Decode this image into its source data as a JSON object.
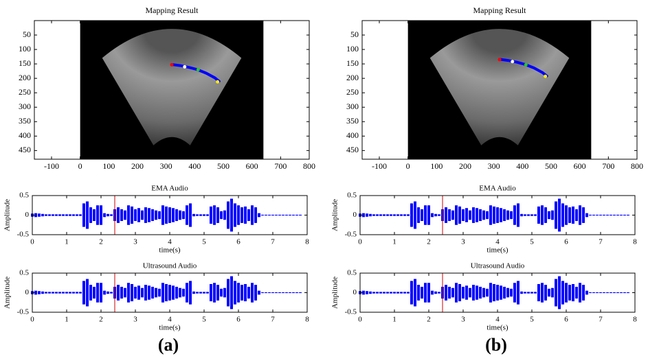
{
  "chart_data": [
    {
      "type": "image",
      "title": "Mapping Result",
      "xlim": [
        -160,
        800
      ],
      "ylim": [
        480,
        0
      ],
      "xticks": [
        -100,
        0,
        100,
        200,
        300,
        400,
        500,
        600,
        700,
        800
      ],
      "yticks": [
        50,
        100,
        150,
        200,
        250,
        300,
        350,
        400,
        450
      ],
      "image_xlim": [
        0,
        640
      ],
      "image_ylim": [
        0,
        480
      ],
      "curve": {
        "color": "#0000ff",
        "x": [
          320,
          350,
          380,
          410,
          440,
          470,
          485
        ],
        "y": [
          152,
          156,
          162,
          170,
          182,
          198,
          210
        ]
      },
      "points": [
        {
          "color": "#ff0000",
          "x": 320,
          "y": 153
        },
        {
          "color": "#ffffff",
          "x": 365,
          "y": 160
        },
        {
          "color": "#22cc22",
          "x": 412,
          "y": 170
        },
        {
          "color": "#ffee00",
          "x": 480,
          "y": 212
        }
      ]
    },
    {
      "type": "waveform",
      "title": "EMA Audio",
      "xlabel": "time(s)",
      "ylabel": "Amplitude",
      "xlim": [
        0,
        8
      ],
      "ylim": [
        -0.5,
        0.5
      ],
      "xticks": [
        0,
        1,
        2,
        3,
        4,
        5,
        6,
        7,
        8
      ],
      "yticks": [
        -0.5,
        0,
        0.5
      ],
      "color": "#0000ff",
      "marker_x": 2.4,
      "marker_color": "#cc0000",
      "x": [
        0,
        0.1,
        0.2,
        0.3,
        0.4,
        0.5,
        0.6,
        0.7,
        0.8,
        0.9,
        1,
        1.1,
        1.2,
        1.3,
        1.4,
        1.5,
        1.6,
        1.7,
        1.8,
        1.9,
        2,
        2.1,
        2.2,
        2.3,
        2.4,
        2.5,
        2.6,
        2.7,
        2.8,
        2.9,
        3,
        3.1,
        3.2,
        3.3,
        3.4,
        3.5,
        3.6,
        3.7,
        3.8,
        3.9,
        4,
        4.1,
        4.2,
        4.3,
        4.4,
        4.5,
        4.6,
        4.7,
        4.8,
        4.9,
        5,
        5.1,
        5.2,
        5.3,
        5.4,
        5.5,
        5.6,
        5.7,
        5.8,
        5.9,
        6,
        6.1,
        6.2,
        6.3,
        6.4,
        6.5,
        6.6,
        6.7,
        6.8,
        6.9,
        7,
        7.1,
        7.2,
        7.3,
        7.4,
        7.5,
        7.6,
        7.7,
        7.8
      ],
      "values": [
        0.04,
        0.05,
        0.04,
        0.03,
        0.02,
        0.02,
        0.02,
        0.02,
        0.02,
        0.02,
        0.02,
        0.02,
        0.02,
        0.02,
        0.02,
        0.3,
        0.35,
        0.2,
        0.15,
        0.25,
        0.25,
        0.05,
        0.03,
        0.02,
        0.15,
        0.2,
        0.15,
        0.12,
        0.25,
        0.22,
        0.15,
        0.18,
        0.12,
        0.2,
        0.18,
        0.15,
        0.12,
        0.1,
        0.25,
        0.22,
        0.2,
        0.18,
        0.15,
        0.12,
        0.1,
        0.25,
        0.3,
        0.03,
        0.02,
        0.02,
        0.02,
        0.02,
        0.22,
        0.25,
        0.2,
        0.1,
        0.12,
        0.35,
        0.42,
        0.3,
        0.25,
        0.2,
        0.22,
        0.15,
        0.25,
        0.2,
        0.05,
        0.01,
        0.01,
        0.01,
        0.01,
        0.01,
        0.01,
        0.01,
        0.01,
        0.01,
        0.01,
        0.01,
        0.01
      ]
    },
    {
      "type": "waveform",
      "title": "Ultrasound Audio",
      "xlabel": "time(s)",
      "ylabel": "Amplitude",
      "xlim": [
        0,
        8
      ],
      "ylim": [
        -0.5,
        0.5
      ],
      "xticks": [
        0,
        1,
        2,
        3,
        4,
        5,
        6,
        7,
        8
      ],
      "yticks": [
        -0.5,
        0,
        0.5
      ],
      "color": "#0000ff",
      "marker_x": 2.4,
      "marker_color": "#cc0000",
      "x": [
        0,
        0.1,
        0.2,
        0.3,
        0.4,
        0.5,
        0.6,
        0.7,
        0.8,
        0.9,
        1,
        1.1,
        1.2,
        1.3,
        1.4,
        1.5,
        1.6,
        1.7,
        1.8,
        1.9,
        2,
        2.1,
        2.2,
        2.3,
        2.4,
        2.5,
        2.6,
        2.7,
        2.8,
        2.9,
        3,
        3.1,
        3.2,
        3.3,
        3.4,
        3.5,
        3.6,
        3.7,
        3.8,
        3.9,
        4,
        4.1,
        4.2,
        4.3,
        4.4,
        4.5,
        4.6,
        4.7,
        4.8,
        4.9,
        5,
        5.1,
        5.2,
        5.3,
        5.4,
        5.5,
        5.6,
        5.7,
        5.8,
        5.9,
        6,
        6.1,
        6.2,
        6.3,
        6.4,
        6.5,
        6.6,
        6.7,
        6.8,
        6.9,
        7,
        7.1,
        7.2,
        7.3,
        7.4,
        7.5,
        7.6,
        7.7,
        7.8
      ],
      "values": [
        0.04,
        0.05,
        0.04,
        0.03,
        0.02,
        0.02,
        0.02,
        0.02,
        0.02,
        0.02,
        0.02,
        0.02,
        0.02,
        0.02,
        0.02,
        0.3,
        0.35,
        0.2,
        0.15,
        0.25,
        0.25,
        0.05,
        0.03,
        0.02,
        0.15,
        0.2,
        0.15,
        0.12,
        0.25,
        0.22,
        0.15,
        0.18,
        0.12,
        0.2,
        0.18,
        0.15,
        0.12,
        0.1,
        0.25,
        0.22,
        0.2,
        0.18,
        0.15,
        0.12,
        0.1,
        0.25,
        0.3,
        0.03,
        0.02,
        0.02,
        0.02,
        0.02,
        0.22,
        0.25,
        0.2,
        0.1,
        0.12,
        0.35,
        0.42,
        0.3,
        0.25,
        0.2,
        0.22,
        0.15,
        0.25,
        0.2,
        0.05,
        0.01,
        0.01,
        0.01,
        0.01,
        0.01,
        0.01,
        0.01,
        0.01,
        0.01,
        0.01,
        0.01,
        0.01
      ]
    },
    {
      "type": "image",
      "title": "Mapping Result",
      "xlim": [
        -160,
        800
      ],
      "ylim": [
        480,
        0
      ],
      "xticks": [
        -100,
        0,
        100,
        200,
        300,
        400,
        500,
        600,
        700,
        800
      ],
      "yticks": [
        50,
        100,
        150,
        200,
        250,
        300,
        350,
        400,
        450
      ],
      "image_xlim": [
        0,
        640
      ],
      "image_ylim": [
        0,
        480
      ],
      "curve": {
        "color": "#0000ff",
        "x": [
          320,
          350,
          380,
          410,
          440,
          470,
          485
        ],
        "y": [
          134,
          138,
          144,
          152,
          164,
          180,
          192
        ]
      },
      "points": [
        {
          "color": "#ff0000",
          "x": 320,
          "y": 135
        },
        {
          "color": "#ffffff",
          "x": 365,
          "y": 142
        },
        {
          "color": "#22cc22",
          "x": 412,
          "y": 153
        },
        {
          "color": "#ffee00",
          "x": 480,
          "y": 193
        }
      ]
    },
    {
      "type": "waveform",
      "title": "EMA Audio",
      "xlabel": "time(s)",
      "ylabel": "Amplitude",
      "xlim": [
        0,
        8
      ],
      "ylim": [
        -0.5,
        0.5
      ],
      "xticks": [
        0,
        1,
        2,
        3,
        4,
        5,
        6,
        7,
        8
      ],
      "yticks": [
        -0.5,
        0,
        0.5
      ],
      "color": "#0000ff",
      "marker_x": 2.4,
      "marker_color": "#cc0000",
      "x": [
        0,
        0.1,
        0.2,
        0.3,
        0.4,
        0.5,
        0.6,
        0.7,
        0.8,
        0.9,
        1,
        1.1,
        1.2,
        1.3,
        1.4,
        1.5,
        1.6,
        1.7,
        1.8,
        1.9,
        2,
        2.1,
        2.2,
        2.3,
        2.4,
        2.5,
        2.6,
        2.7,
        2.8,
        2.9,
        3,
        3.1,
        3.2,
        3.3,
        3.4,
        3.5,
        3.6,
        3.7,
        3.8,
        3.9,
        4,
        4.1,
        4.2,
        4.3,
        4.4,
        4.5,
        4.6,
        4.7,
        4.8,
        4.9,
        5,
        5.1,
        5.2,
        5.3,
        5.4,
        5.5,
        5.6,
        5.7,
        5.8,
        5.9,
        6,
        6.1,
        6.2,
        6.3,
        6.4,
        6.5,
        6.6,
        6.7,
        6.8,
        6.9,
        7,
        7.1,
        7.2,
        7.3,
        7.4,
        7.5,
        7.6,
        7.7,
        7.8
      ],
      "values": [
        0.04,
        0.05,
        0.04,
        0.03,
        0.02,
        0.02,
        0.02,
        0.02,
        0.02,
        0.02,
        0.02,
        0.02,
        0.02,
        0.02,
        0.02,
        0.3,
        0.35,
        0.2,
        0.15,
        0.25,
        0.25,
        0.05,
        0.03,
        0.02,
        0.15,
        0.2,
        0.15,
        0.12,
        0.25,
        0.22,
        0.15,
        0.18,
        0.12,
        0.2,
        0.18,
        0.15,
        0.12,
        0.1,
        0.25,
        0.22,
        0.2,
        0.18,
        0.15,
        0.12,
        0.1,
        0.25,
        0.3,
        0.03,
        0.02,
        0.02,
        0.02,
        0.02,
        0.22,
        0.25,
        0.2,
        0.1,
        0.12,
        0.35,
        0.42,
        0.3,
        0.25,
        0.2,
        0.22,
        0.15,
        0.25,
        0.2,
        0.05,
        0.01,
        0.01,
        0.01,
        0.01,
        0.01,
        0.01,
        0.01,
        0.01,
        0.01,
        0.01,
        0.01,
        0.01
      ]
    },
    {
      "type": "waveform",
      "title": "Ultrasound Audio",
      "xlabel": "time(s)",
      "ylabel": "Amplitude",
      "xlim": [
        0,
        8
      ],
      "ylim": [
        -0.5,
        0.5
      ],
      "xticks": [
        0,
        1,
        2,
        3,
        4,
        5,
        6,
        7,
        8
      ],
      "yticks": [
        -0.5,
        0,
        0.5
      ],
      "color": "#0000ff",
      "marker_x": 2.4,
      "marker_color": "#cc0000",
      "x": [
        0,
        0.1,
        0.2,
        0.3,
        0.4,
        0.5,
        0.6,
        0.7,
        0.8,
        0.9,
        1,
        1.1,
        1.2,
        1.3,
        1.4,
        1.5,
        1.6,
        1.7,
        1.8,
        1.9,
        2,
        2.1,
        2.2,
        2.3,
        2.4,
        2.5,
        2.6,
        2.7,
        2.8,
        2.9,
        3,
        3.1,
        3.2,
        3.3,
        3.4,
        3.5,
        3.6,
        3.7,
        3.8,
        3.9,
        4,
        4.1,
        4.2,
        4.3,
        4.4,
        4.5,
        4.6,
        4.7,
        4.8,
        4.9,
        5,
        5.1,
        5.2,
        5.3,
        5.4,
        5.5,
        5.6,
        5.7,
        5.8,
        5.9,
        6,
        6.1,
        6.2,
        6.3,
        6.4,
        6.5,
        6.6,
        6.7,
        6.8,
        6.9,
        7,
        7.1,
        7.2,
        7.3,
        7.4,
        7.5,
        7.6,
        7.7,
        7.8
      ],
      "values": [
        0.04,
        0.05,
        0.04,
        0.03,
        0.02,
        0.02,
        0.02,
        0.02,
        0.02,
        0.02,
        0.02,
        0.02,
        0.02,
        0.02,
        0.02,
        0.3,
        0.35,
        0.2,
        0.15,
        0.25,
        0.25,
        0.05,
        0.03,
        0.02,
        0.15,
        0.2,
        0.15,
        0.12,
        0.25,
        0.22,
        0.15,
        0.18,
        0.12,
        0.2,
        0.18,
        0.15,
        0.12,
        0.1,
        0.25,
        0.22,
        0.2,
        0.18,
        0.15,
        0.12,
        0.1,
        0.25,
        0.3,
        0.03,
        0.02,
        0.02,
        0.02,
        0.02,
        0.22,
        0.25,
        0.2,
        0.1,
        0.12,
        0.35,
        0.42,
        0.3,
        0.25,
        0.2,
        0.22,
        0.15,
        0.25,
        0.2,
        0.05,
        0.01,
        0.01,
        0.01,
        0.01,
        0.01,
        0.01,
        0.01,
        0.01,
        0.01,
        0.01,
        0.01,
        0.01
      ]
    }
  ],
  "panel_labels": [
    "(a)",
    "(b)"
  ]
}
